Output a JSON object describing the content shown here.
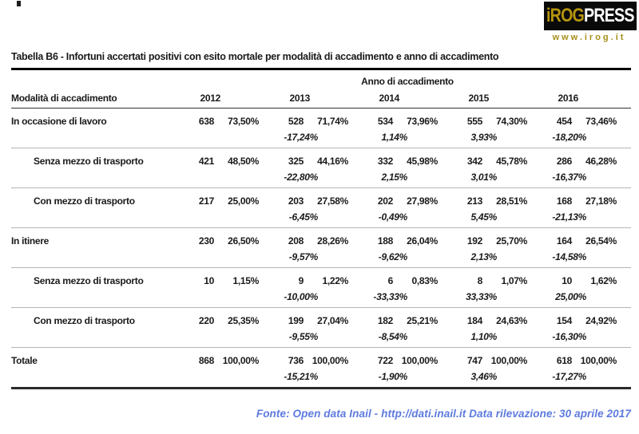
{
  "logo": {
    "brand_gold": "iROG",
    "brand_white": "PRESS",
    "website": "www.irog.it"
  },
  "title": "Tabella B6 - Infortuni accertati positivi con esito mortale per modalità di accadimento e anno di accadimento",
  "table": {
    "year_group_label": "Anno di accadimento",
    "row_header": "Modalità di accadimento",
    "years": [
      "2012",
      "2013",
      "2014",
      "2015",
      "2016"
    ],
    "rows": [
      {
        "label": "In occasione di lavoro",
        "indent": false,
        "total": false,
        "cells": [
          {
            "count": "638",
            "pct": "73,50%",
            "change": ""
          },
          {
            "count": "528",
            "pct": "71,74%",
            "change": "-17,24%"
          },
          {
            "count": "534",
            "pct": "73,96%",
            "change": "1,14%"
          },
          {
            "count": "555",
            "pct": "74,30%",
            "change": "3,93%"
          },
          {
            "count": "454",
            "pct": "73,46%",
            "change": "-18,20%"
          }
        ]
      },
      {
        "label": "Senza mezzo di trasporto",
        "indent": true,
        "total": false,
        "cells": [
          {
            "count": "421",
            "pct": "48,50%",
            "change": ""
          },
          {
            "count": "325",
            "pct": "44,16%",
            "change": "-22,80%"
          },
          {
            "count": "332",
            "pct": "45,98%",
            "change": "2,15%"
          },
          {
            "count": "342",
            "pct": "45,78%",
            "change": "3,01%"
          },
          {
            "count": "286",
            "pct": "46,28%",
            "change": "-16,37%"
          }
        ]
      },
      {
        "label": "Con mezzo di trasporto",
        "indent": true,
        "total": false,
        "cells": [
          {
            "count": "217",
            "pct": "25,00%",
            "change": ""
          },
          {
            "count": "203",
            "pct": "27,58%",
            "change": "-6,45%"
          },
          {
            "count": "202",
            "pct": "27,98%",
            "change": "-0,49%"
          },
          {
            "count": "213",
            "pct": "28,51%",
            "change": "5,45%"
          },
          {
            "count": "168",
            "pct": "27,18%",
            "change": "-21,13%"
          }
        ]
      },
      {
        "label": "In itinere",
        "indent": false,
        "total": false,
        "cells": [
          {
            "count": "230",
            "pct": "26,50%",
            "change": ""
          },
          {
            "count": "208",
            "pct": "28,26%",
            "change": "-9,57%"
          },
          {
            "count": "188",
            "pct": "26,04%",
            "change": "-9,62%"
          },
          {
            "count": "192",
            "pct": "25,70%",
            "change": "2,13%"
          },
          {
            "count": "164",
            "pct": "26,54%",
            "change": "-14,58%"
          }
        ]
      },
      {
        "label": "Senza mezzo di trasporto",
        "indent": true,
        "total": false,
        "cells": [
          {
            "count": "10",
            "pct": "1,15%",
            "change": ""
          },
          {
            "count": "9",
            "pct": "1,22%",
            "change": "-10,00%"
          },
          {
            "count": "6",
            "pct": "0,83%",
            "change": "-33,33%"
          },
          {
            "count": "8",
            "pct": "1,07%",
            "change": "33,33%"
          },
          {
            "count": "10",
            "pct": "1,62%",
            "change": "25,00%"
          }
        ]
      },
      {
        "label": "Con mezzo di trasporto",
        "indent": true,
        "total": false,
        "cells": [
          {
            "count": "220",
            "pct": "25,35%",
            "change": ""
          },
          {
            "count": "199",
            "pct": "27,04%",
            "change": "-9,55%"
          },
          {
            "count": "182",
            "pct": "25,21%",
            "change": "-8,54%"
          },
          {
            "count": "184",
            "pct": "24,63%",
            "change": "1,10%"
          },
          {
            "count": "154",
            "pct": "24,92%",
            "change": "-16,30%"
          }
        ]
      },
      {
        "label": "Totale",
        "indent": false,
        "total": true,
        "cells": [
          {
            "count": "868",
            "pct": "100,00%",
            "change": ""
          },
          {
            "count": "736",
            "pct": "100,00%",
            "change": "-15,21%"
          },
          {
            "count": "722",
            "pct": "100,00%",
            "change": "-1,90%"
          },
          {
            "count": "747",
            "pct": "100,00%",
            "change": "3,46%"
          },
          {
            "count": "618",
            "pct": "100,00%",
            "change": "-17,27%"
          }
        ]
      }
    ]
  },
  "footer": {
    "text": "Fonte: Open data Inail - http://dati.inail.it Data rilevazione: 30 aprile 2017"
  },
  "colors": {
    "logo_gold": "#b6950f",
    "footer_blue": "#5d7ade"
  }
}
